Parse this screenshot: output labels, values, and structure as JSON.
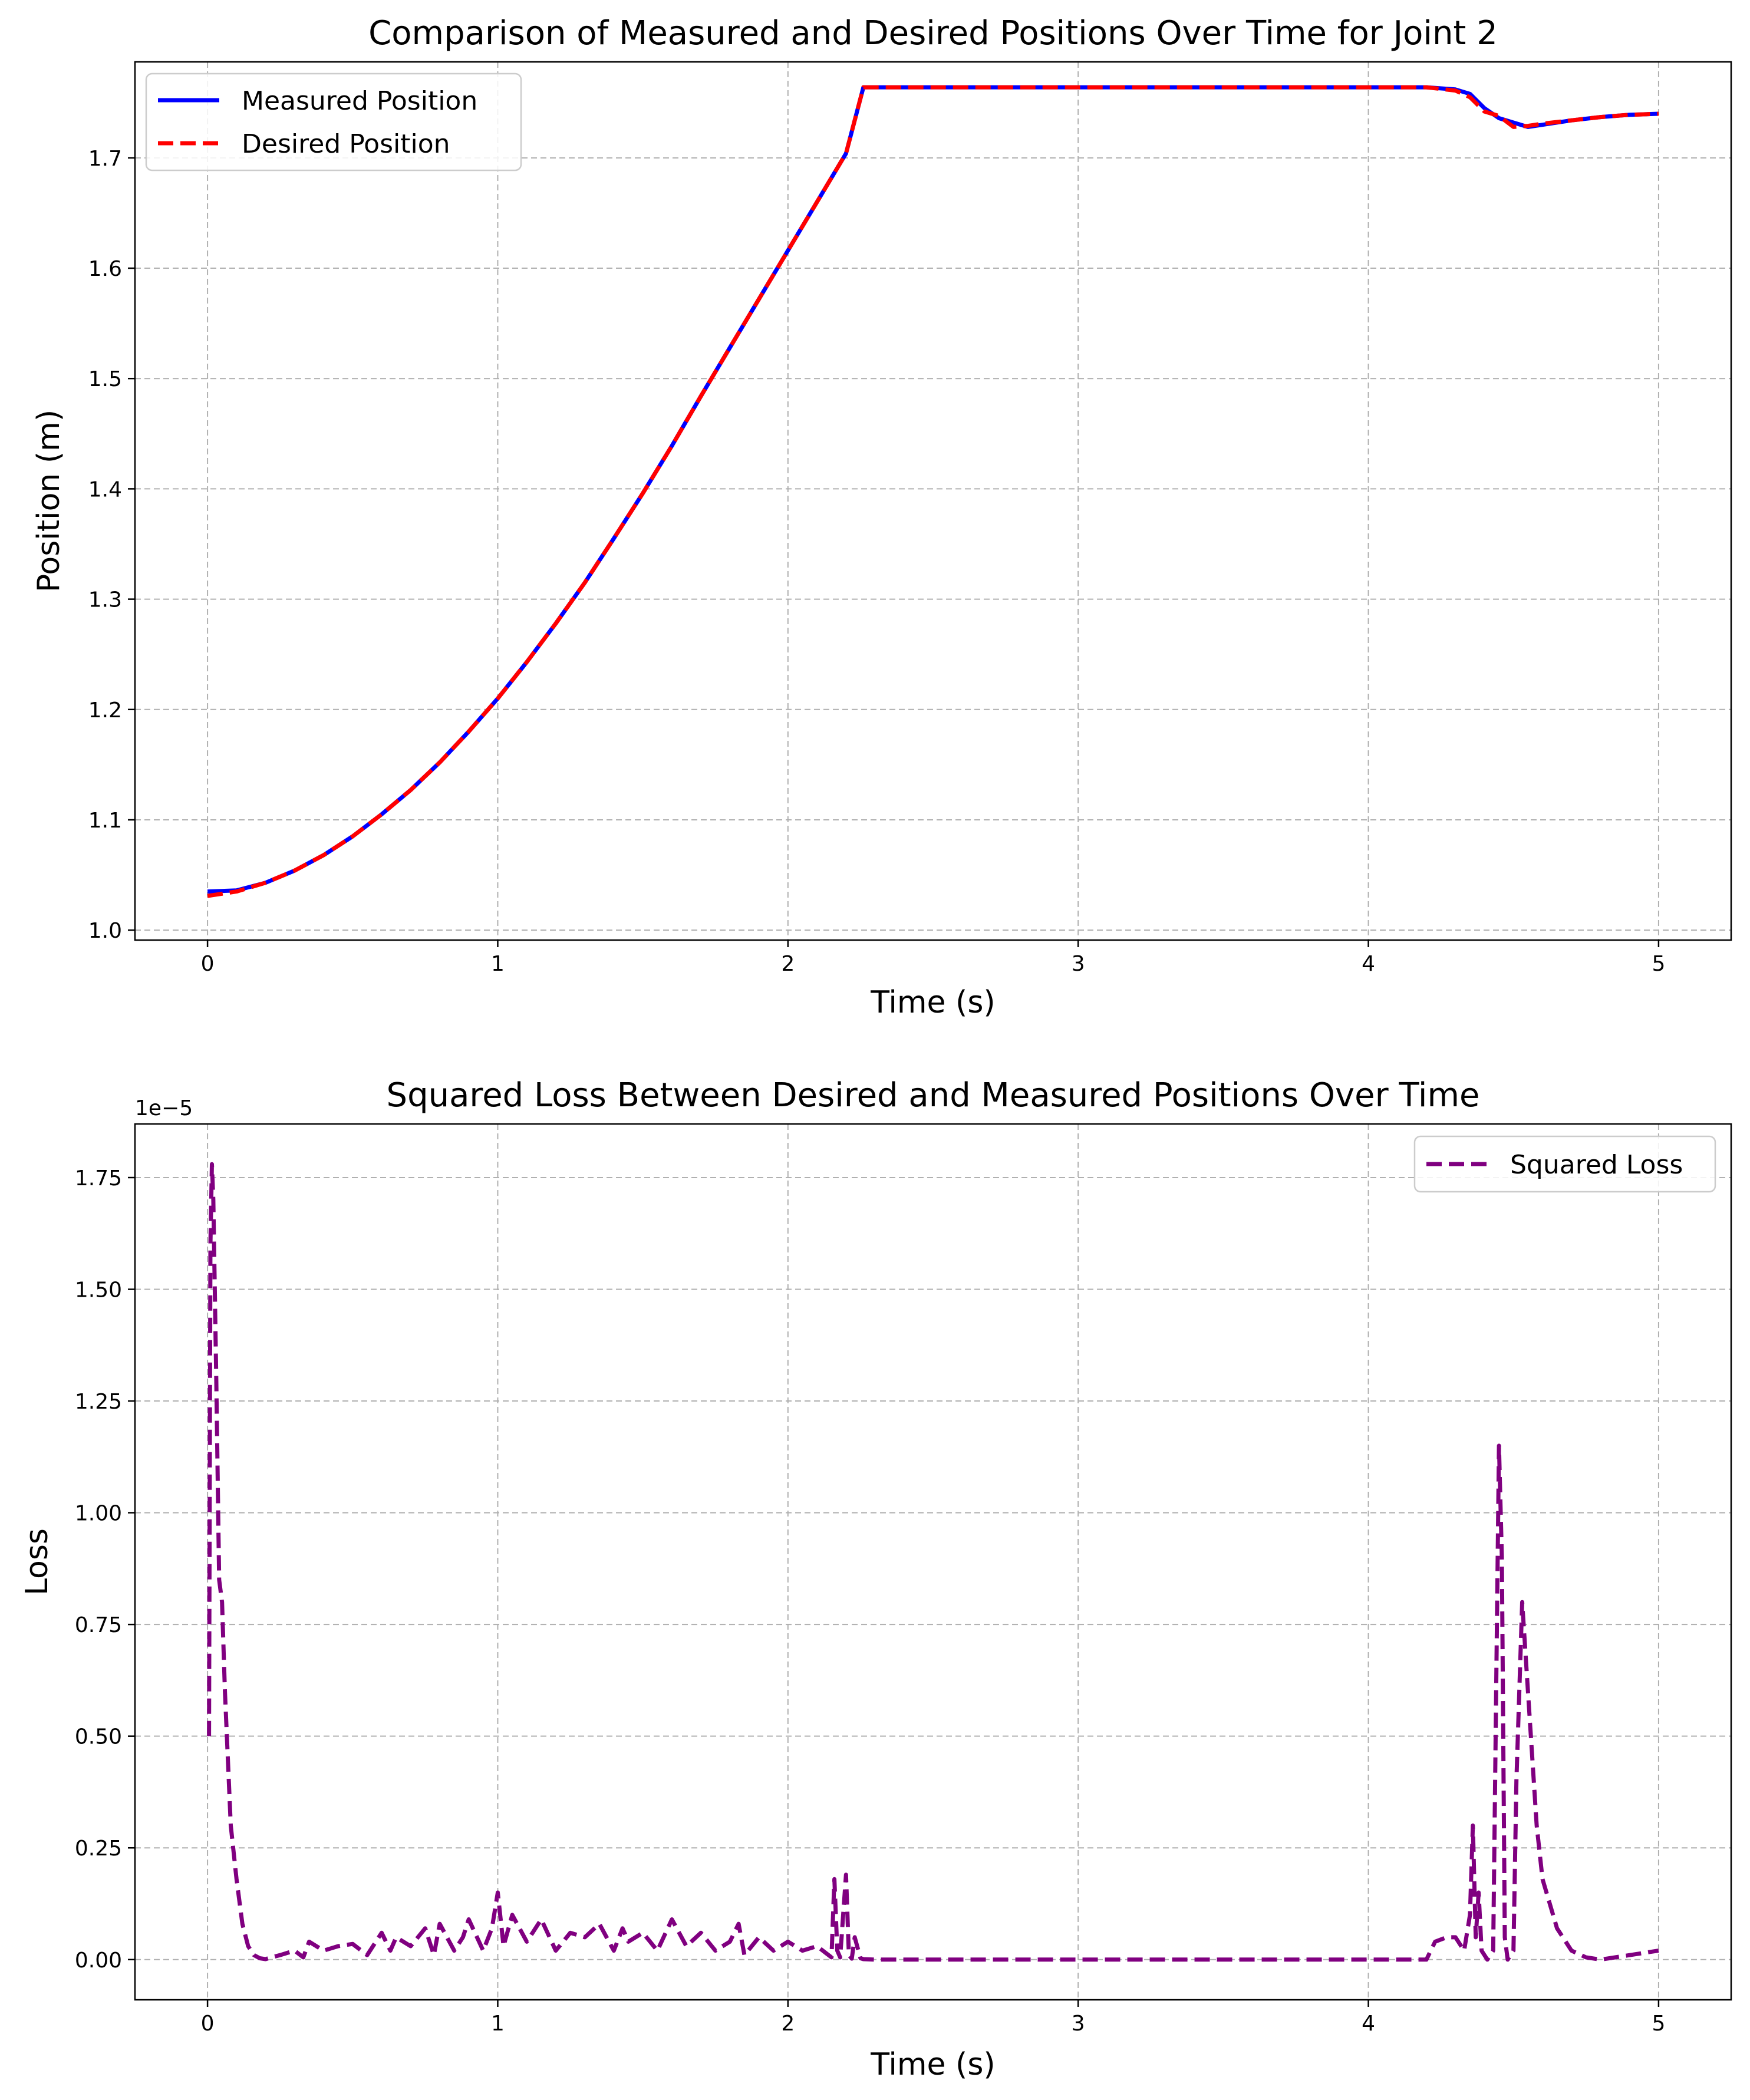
{
  "chart_data": [
    {
      "type": "line",
      "title": "Comparison of Measured and Desired Positions Over Time for Joint 2",
      "xlabel": "Time (s)",
      "ylabel": "Position (m)",
      "xlim": [
        -0.25,
        5.25
      ],
      "ylim": [
        0.991,
        1.787
      ],
      "xticks": [
        0,
        1,
        2,
        3,
        4,
        5
      ],
      "xtick_labels": [
        "0",
        "1",
        "2",
        "3",
        "4",
        "5"
      ],
      "yticks": [
        1.0,
        1.1,
        1.2,
        1.3,
        1.4,
        1.5,
        1.6,
        1.7
      ],
      "ytick_labels": [
        "1.0",
        "1.1",
        "1.2",
        "1.3",
        "1.4",
        "1.5",
        "1.6",
        "1.7"
      ],
      "grid": true,
      "legend_position": "upper-left",
      "series": [
        {
          "name": "Measured Position",
          "color": "#0000ff",
          "style": "solid",
          "x": [
            0,
            0.1,
            0.2,
            0.3,
            0.4,
            0.5,
            0.6,
            0.7,
            0.8,
            0.9,
            1.0,
            1.1,
            1.2,
            1.3,
            1.4,
            1.5,
            1.6,
            1.7,
            1.8,
            1.9,
            2.0,
            2.1,
            2.2,
            2.26,
            2.5,
            3.0,
            3.5,
            4.0,
            4.2,
            4.3,
            4.35,
            4.4,
            4.45,
            4.5,
            4.55,
            4.6,
            4.7,
            4.8,
            4.9,
            5.0
          ],
          "y": [
            1.035,
            1.036,
            1.043,
            1.054,
            1.068,
            1.085,
            1.105,
            1.127,
            1.152,
            1.18,
            1.21,
            1.243,
            1.278,
            1.315,
            1.355,
            1.396,
            1.439,
            1.484,
            1.528,
            1.572,
            1.616,
            1.66,
            1.704,
            1.764,
            1.764,
            1.764,
            1.764,
            1.764,
            1.764,
            1.762,
            1.758,
            1.745,
            1.736,
            1.732,
            1.728,
            1.73,
            1.734,
            1.737,
            1.739,
            1.74
          ]
        },
        {
          "name": "Desired Position",
          "color": "#ff0000",
          "style": "dashed",
          "x": [
            0,
            0.1,
            0.2,
            0.3,
            0.4,
            0.5,
            0.6,
            0.7,
            0.8,
            0.9,
            1.0,
            1.1,
            1.2,
            1.3,
            1.4,
            1.5,
            1.6,
            1.7,
            1.8,
            1.9,
            2.0,
            2.1,
            2.2,
            2.26,
            2.5,
            3.0,
            3.5,
            4.0,
            4.2,
            4.3,
            4.35,
            4.4,
            4.45,
            4.5,
            4.55,
            4.6,
            4.7,
            4.8,
            4.9,
            5.0
          ],
          "y": [
            1.031,
            1.035,
            1.043,
            1.054,
            1.068,
            1.085,
            1.105,
            1.127,
            1.152,
            1.18,
            1.21,
            1.243,
            1.278,
            1.315,
            1.355,
            1.396,
            1.439,
            1.484,
            1.528,
            1.572,
            1.616,
            1.66,
            1.704,
            1.764,
            1.764,
            1.764,
            1.764,
            1.764,
            1.764,
            1.761,
            1.755,
            1.742,
            1.738,
            1.728,
            1.729,
            1.731,
            1.734,
            1.737,
            1.739,
            1.74
          ]
        }
      ]
    },
    {
      "type": "line",
      "title": "Squared Loss Between Desired and Measured Positions Over Time",
      "xlabel": "Time (s)",
      "ylabel": "Loss",
      "axis_multiplier": "1e−5",
      "xlim": [
        -0.25,
        5.25
      ],
      "ylim": [
        -0.09,
        1.87
      ],
      "xticks": [
        0,
        1,
        2,
        3,
        4,
        5
      ],
      "xtick_labels": [
        "0",
        "1",
        "2",
        "3",
        "4",
        "5"
      ],
      "yticks": [
        0.0,
        0.25,
        0.5,
        0.75,
        1.0,
        1.25,
        1.5,
        1.75
      ],
      "ytick_labels": [
        "0.00",
        "0.25",
        "0.50",
        "0.75",
        "1.00",
        "1.25",
        "1.50",
        "1.75"
      ],
      "grid": true,
      "legend_position": "upper-right",
      "series": [
        {
          "name": "Squared Loss",
          "color": "#800080",
          "style": "dashed",
          "x": [
            0.005,
            0.01,
            0.015,
            0.02,
            0.03,
            0.04,
            0.05,
            0.06,
            0.08,
            0.1,
            0.12,
            0.14,
            0.16,
            0.18,
            0.2,
            0.22,
            0.25,
            0.3,
            0.33,
            0.35,
            0.4,
            0.45,
            0.5,
            0.55,
            0.6,
            0.63,
            0.65,
            0.7,
            0.75,
            0.78,
            0.8,
            0.85,
            0.88,
            0.9,
            0.95,
            0.98,
            1.0,
            1.02,
            1.05,
            1.1,
            1.15,
            1.2,
            1.25,
            1.3,
            1.35,
            1.4,
            1.43,
            1.45,
            1.5,
            1.55,
            1.6,
            1.65,
            1.7,
            1.75,
            1.8,
            1.83,
            1.85,
            1.9,
            1.95,
            2.0,
            2.05,
            2.1,
            2.15,
            2.16,
            2.17,
            2.18,
            2.2,
            2.21,
            2.22,
            2.23,
            2.25,
            2.26,
            2.3,
            3.0,
            4.2,
            4.23,
            4.27,
            4.3,
            4.33,
            4.35,
            4.36,
            4.37,
            4.38,
            4.39,
            4.41,
            4.43,
            4.45,
            4.46,
            4.47,
            4.48,
            4.5,
            4.51,
            4.52,
            4.53,
            4.55,
            4.58,
            4.6,
            4.65,
            4.7,
            4.75,
            4.8,
            4.85,
            4.9,
            4.95,
            5.0
          ],
          "y": [
            0.5,
            1.6,
            1.78,
            1.7,
            1.3,
            0.85,
            0.8,
            0.6,
            0.3,
            0.18,
            0.08,
            0.03,
            0.01,
            0.003,
            0.001,
            0.005,
            0.01,
            0.02,
            0.005,
            0.04,
            0.02,
            0.03,
            0.035,
            0.01,
            0.06,
            0.02,
            0.05,
            0.03,
            0.07,
            0.01,
            0.08,
            0.02,
            0.05,
            0.09,
            0.02,
            0.07,
            0.15,
            0.03,
            0.1,
            0.04,
            0.09,
            0.02,
            0.06,
            0.05,
            0.08,
            0.02,
            0.07,
            0.04,
            0.06,
            0.02,
            0.09,
            0.03,
            0.06,
            0.02,
            0.04,
            0.08,
            0.01,
            0.05,
            0.02,
            0.04,
            0.02,
            0.03,
            0.005,
            0.18,
            0.02,
            0.005,
            0.19,
            0.01,
            0.002,
            0.05,
            0.003,
            0.001,
            0.0,
            0.0,
            0.0,
            0.04,
            0.05,
            0.05,
            0.02,
            0.1,
            0.3,
            0.05,
            0.15,
            0.02,
            0.0,
            0.02,
            1.15,
            0.9,
            0.05,
            0.0,
            0.02,
            0.4,
            0.6,
            0.8,
            0.6,
            0.3,
            0.18,
            0.07,
            0.02,
            0.005,
            0.0,
            0.005,
            0.01,
            0.015,
            0.02
          ]
        }
      ]
    }
  ]
}
